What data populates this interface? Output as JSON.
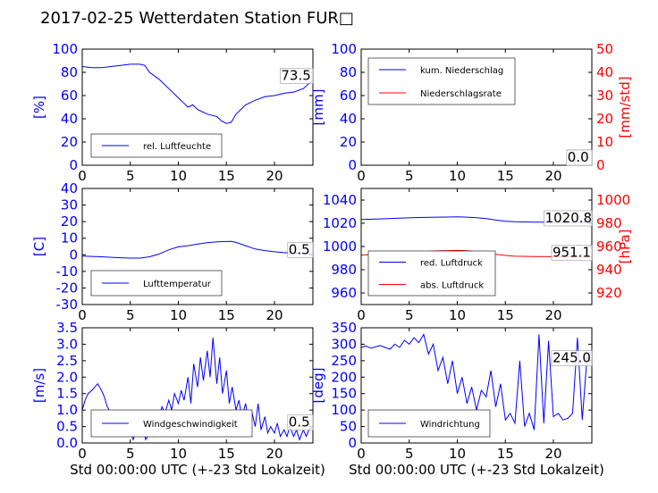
{
  "figure": {
    "title": "2017-02-25 Wetterdaten Station FUR□"
  },
  "colors": {
    "left_axis": "#0000ff",
    "right_axis": "#ff0000",
    "series_blue": "#0000ff",
    "series_red": "#ff0000"
  },
  "chart_data": [
    {
      "type": "line",
      "xlim": [
        0,
        24
      ],
      "ylim": [
        0,
        100
      ],
      "xticks": [
        0,
        5,
        10,
        15,
        20
      ],
      "yticks": [
        0,
        20,
        40,
        60,
        80,
        100
      ],
      "ylabel": "[%]",
      "xlabel": "",
      "series": [
        {
          "name": "rel. Luftfeuchte",
          "color": "#0000ff",
          "x": [
            0,
            1,
            2,
            3,
            4,
            5,
            6,
            6.5,
            7,
            8,
            9,
            10,
            10.5,
            11,
            11.5,
            12,
            13,
            14,
            14.5,
            15,
            15.5,
            16,
            17,
            18,
            19,
            20,
            21,
            22,
            23,
            24
          ],
          "y": [
            85,
            84,
            84,
            85,
            86,
            87,
            87,
            86,
            80,
            74,
            66,
            58,
            54,
            50,
            52,
            48,
            44,
            42,
            38,
            36,
            37,
            44,
            52,
            56,
            59,
            60,
            62,
            63,
            66,
            73.5
          ]
        }
      ],
      "last_value_label": "73.5"
    },
    {
      "type": "line",
      "xlim": [
        0,
        24
      ],
      "ylim": [
        0,
        100
      ],
      "y2lim": [
        0,
        50
      ],
      "xticks": [
        0,
        5,
        10,
        15,
        20
      ],
      "yticks": [
        0,
        20,
        40,
        60,
        80,
        100
      ],
      "y2ticks": [
        0,
        10,
        20,
        30,
        40,
        50
      ],
      "ylabel": "[mm]",
      "y2label": "[mm/std]",
      "xlabel": "",
      "series": [
        {
          "name": "kum. Niederschlag",
          "color": "#0000ff",
          "axis": "left",
          "x": [
            0,
            24
          ],
          "y": [
            0,
            0
          ]
        },
        {
          "name": "Niederschlagsrate",
          "color": "#ff0000",
          "axis": "right",
          "x": [
            0,
            24
          ],
          "y": [
            0,
            0
          ]
        }
      ],
      "last_value_label": "0.0",
      "last_value_label2": "0.0"
    },
    {
      "type": "line",
      "xlim": [
        0,
        24
      ],
      "ylim": [
        -30,
        40
      ],
      "xticks": [
        0,
        5,
        10,
        15,
        20
      ],
      "yticks": [
        -30,
        -20,
        -10,
        0,
        10,
        20,
        30,
        40
      ],
      "ylabel": "[C]",
      "xlabel": "",
      "series": [
        {
          "name": "Lufttemperatur",
          "color": "#0000ff",
          "x": [
            0,
            1,
            2,
            3,
            4,
            5,
            6,
            7,
            8,
            9,
            10,
            11,
            12,
            13,
            14,
            15,
            15.5,
            16,
            17,
            18,
            19,
            20,
            21,
            22,
            23,
            24
          ],
          "y": [
            -0.8,
            -1.0,
            -1.2,
            -1.5,
            -1.8,
            -2.0,
            -2.0,
            -1.2,
            0.5,
            3.0,
            4.8,
            5.5,
            6.5,
            7.3,
            7.8,
            8.0,
            8.1,
            7.5,
            5.5,
            3.5,
            2.5,
            1.8,
            1.3,
            1.0,
            0.7,
            0.5
          ]
        }
      ],
      "last_value_label": "0.5"
    },
    {
      "type": "line",
      "xlim": [
        0,
        24
      ],
      "ylim": [
        950,
        1050
      ],
      "y2lim": [
        910,
        1010
      ],
      "xticks": [
        0,
        5,
        10,
        15,
        20
      ],
      "yticks": [
        960,
        980,
        1000,
        1020,
        1040
      ],
      "y2ticks": [
        920,
        940,
        960,
        980,
        1000
      ],
      "ylabel": "",
      "y2label": "[hPa]",
      "xlabel": "",
      "series": [
        {
          "name": "red. Luftdruck",
          "color": "#0000ff",
          "axis": "left",
          "x": [
            0,
            2,
            4,
            6,
            8,
            10,
            11,
            12,
            13,
            14,
            15,
            16,
            18,
            20,
            22,
            24
          ],
          "y": [
            1023.2,
            1023.8,
            1024.5,
            1025.0,
            1025.3,
            1025.5,
            1025.3,
            1024.8,
            1024.0,
            1022.8,
            1021.8,
            1021.3,
            1021.0,
            1020.9,
            1020.8,
            1020.8
          ]
        },
        {
          "name": "abs. Luftdruck",
          "color": "#ff0000",
          "axis": "right",
          "x": [
            0,
            2,
            4,
            6,
            8,
            10,
            11,
            12,
            13,
            14,
            15,
            16,
            18,
            20,
            22,
            24
          ],
          "y": [
            952.7,
            953.3,
            954.2,
            955.3,
            956.2,
            956.6,
            956.3,
            955.6,
            954.7,
            953.3,
            952.3,
            951.6,
            951.3,
            951.2,
            951.1,
            951.1
          ]
        }
      ],
      "last_value_label": "1020.8",
      "last_value_label2": "951.1"
    },
    {
      "type": "line",
      "xlim": [
        0,
        24
      ],
      "ylim": [
        0,
        3.5
      ],
      "xticks": [
        0,
        5,
        10,
        15,
        20
      ],
      "yticks": [
        0.0,
        0.5,
        1.0,
        1.5,
        2.0,
        2.5,
        3.0,
        3.5
      ],
      "ylabel": "[m/s]",
      "xlabel": "Std 00:00:00 UTC (+-23 Std Lokalzeit)",
      "series": [
        {
          "name": "Windgeschwindigkeit",
          "color": "#0000ff",
          "x": [
            0,
            0.3,
            0.6,
            1,
            1.3,
            1.6,
            2,
            2.3,
            2.6,
            3,
            3.3,
            3.6,
            4,
            4.3,
            4.6,
            5,
            5.3,
            5.6,
            6,
            6.3,
            6.6,
            7,
            7.3,
            7.6,
            8,
            8.3,
            8.6,
            9,
            9.3,
            9.6,
            10,
            10.3,
            10.6,
            11,
            11.3,
            11.6,
            12,
            12.3,
            12.6,
            13,
            13.3,
            13.6,
            14,
            14.3,
            14.6,
            15,
            15.3,
            15.6,
            16,
            16.3,
            16.6,
            17,
            17.3,
            17.6,
            18,
            18.3,
            18.6,
            19,
            19.3,
            19.6,
            20,
            20.3,
            20.6,
            21,
            21.3,
            21.6,
            22,
            22.3,
            22.6,
            23,
            23.3,
            23.6,
            24
          ],
          "y": [
            1.0,
            1.3,
            1.5,
            1.6,
            1.7,
            1.8,
            1.6,
            1.4,
            1.1,
            0.9,
            0.6,
            0.5,
            0.3,
            0.4,
            0.6,
            0.3,
            0.1,
            0.4,
            0.2,
            0.5,
            0.1,
            0.3,
            0.2,
            0.6,
            0.8,
            1.1,
            0.9,
            1.3,
            1.0,
            1.5,
            1.2,
            1.6,
            1.3,
            2.0,
            1.2,
            2.4,
            1.7,
            2.6,
            1.9,
            2.8,
            2.0,
            3.2,
            1.8,
            2.6,
            1.5,
            2.2,
            1.2,
            1.7,
            1.0,
            1.3,
            0.8,
            1.2,
            0.6,
            1.0,
            0.5,
            1.2,
            0.4,
            0.8,
            0.3,
            0.5,
            0.3,
            0.6,
            0.2,
            0.4,
            0.2,
            0.5,
            0.2,
            0.4,
            0.1,
            0.4,
            0.2,
            0.4,
            0.5
          ]
        }
      ],
      "last_value_label": "0.5"
    },
    {
      "type": "line",
      "xlim": [
        0,
        24
      ],
      "ylim": [
        0,
        350
      ],
      "xticks": [
        0,
        5,
        10,
        15,
        20
      ],
      "yticks": [
        0,
        50,
        100,
        150,
        200,
        250,
        300,
        350
      ],
      "ylabel": "[deg]",
      "xlabel": "Std 00:00:00 UTC (+-23 Std Lokalzeit)",
      "series": [
        {
          "name": "Windrichtung",
          "color": "#0000ff",
          "x": [
            0,
            0.5,
            1,
            1.5,
            2,
            2.5,
            3,
            3.5,
            4,
            4.5,
            5,
            5.5,
            6,
            6.5,
            7,
            7.5,
            8,
            8.5,
            9,
            9.5,
            10,
            10.5,
            11,
            11.5,
            12,
            12.5,
            13,
            13.5,
            14,
            14.5,
            15,
            15.5,
            16,
            16.5,
            17,
            17.5,
            18,
            18.5,
            19,
            19.5,
            20,
            20.5,
            21,
            21.5,
            22,
            22.5,
            23,
            23.5,
            24
          ],
          "y": [
            290,
            295,
            288,
            292,
            296,
            290,
            285,
            300,
            290,
            312,
            300,
            320,
            305,
            330,
            270,
            300,
            220,
            260,
            180,
            250,
            150,
            200,
            120,
            170,
            100,
            160,
            140,
            220,
            110,
            180,
            70,
            90,
            60,
            250,
            50,
            90,
            40,
            330,
            60,
            310,
            80,
            90,
            70,
            75,
            90,
            320,
            70,
            260,
            245
          ]
        }
      ],
      "last_value_label": "245.0"
    }
  ]
}
